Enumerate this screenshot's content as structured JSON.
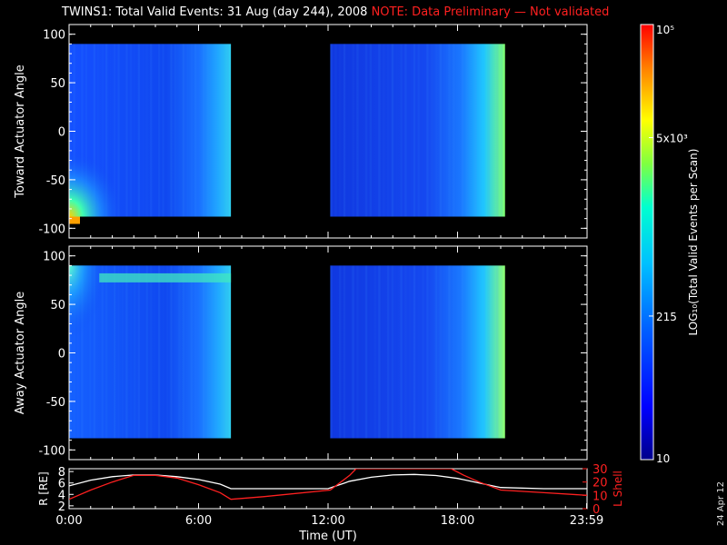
{
  "title": {
    "main": "TWINS1: Total Valid Events: 31 Aug (day 244), 2008",
    "note": "NOTE: Data Preliminary — Not validated"
  },
  "date_stamp": "24 Apr 12",
  "colors": {
    "background": "#000000",
    "note": "#ff2020",
    "r_line": "#ffffff",
    "l_shell_line": "#ff2020"
  },
  "chart_data": [
    {
      "type": "heatmap",
      "panel": "toward",
      "ylabel": "Toward Actuator Angle",
      "x_range_hours": [
        0,
        24
      ],
      "ylim": [
        -110,
        110
      ],
      "y_ticks": [
        "100",
        "50",
        "0",
        "-50",
        "-100"
      ],
      "y_tick_values": [
        100,
        50,
        0,
        -50,
        -100
      ],
      "data_windows_hours": [
        [
          0.0,
          7.5
        ],
        [
          12.1,
          20.2
        ]
      ],
      "angle_range": [
        -88,
        90
      ]
    },
    {
      "type": "heatmap",
      "panel": "away",
      "ylabel": "Away Actuator Angle",
      "x_range_hours": [
        0,
        24
      ],
      "ylim": [
        -110,
        110
      ],
      "y_ticks": [
        "100",
        "50",
        "0",
        "-50",
        "-100"
      ],
      "y_tick_values": [
        100,
        50,
        0,
        -50,
        -100
      ],
      "data_windows_hours": [
        [
          0.0,
          7.5
        ],
        [
          12.1,
          20.2
        ]
      ],
      "angle_range": [
        -88,
        90
      ]
    },
    {
      "type": "line",
      "panel": "orbit",
      "xlabel": "Time (UT)",
      "x_ticks": [
        "0:00",
        "6:00",
        "12:00",
        "18:00",
        "23:59"
      ],
      "x_tick_values": [
        0,
        6,
        12,
        18,
        23.98
      ],
      "left_axis": {
        "label": "R [RE]",
        "ticks": [
          "8",
          "6",
          "4",
          "2"
        ],
        "tick_values": [
          8,
          6,
          4,
          2
        ],
        "ylim": [
          1.5,
          8.5
        ]
      },
      "right_axis": {
        "label": "L Shell",
        "ticks": [
          "30",
          "20",
          "10",
          "0"
        ],
        "tick_values": [
          30,
          20,
          10,
          0
        ],
        "ylim": [
          0,
          30
        ]
      },
      "series": [
        {
          "name": "R",
          "axis": "left",
          "x": [
            0,
            1,
            2,
            3,
            4,
            5,
            6,
            7,
            7.5,
            9,
            12,
            13,
            14,
            15,
            16,
            17,
            18,
            19,
            20,
            22,
            24
          ],
          "y": [
            5.5,
            6.5,
            7.1,
            7.4,
            7.4,
            7.1,
            6.6,
            5.8,
            5.0,
            5.0,
            5.0,
            6.3,
            7.0,
            7.4,
            7.5,
            7.3,
            6.8,
            6.0,
            5.2,
            5.0,
            5.0
          ]
        },
        {
          "name": "L Shell",
          "axis": "right",
          "x": [
            0,
            1,
            2,
            3,
            4,
            5,
            6,
            7,
            7.5,
            9,
            12.1,
            13,
            13.3,
            17.7,
            18.3,
            19,
            20,
            22,
            24
          ],
          "y": [
            7,
            14,
            20,
            25,
            25,
            23,
            18,
            12,
            7,
            9,
            14,
            25,
            30,
            30,
            25,
            20,
            14,
            12,
            10
          ]
        }
      ]
    }
  ],
  "colorbar": {
    "label": "LOG10(Total Valid Events per Scan)",
    "ticks": [
      "10^5",
      "5x10^3",
      "215",
      "10"
    ],
    "tick_fracs": [
      1.0,
      0.74,
      0.33,
      0.0
    ],
    "stops": [
      "#00008b",
      "#0000ff",
      "#0060ff",
      "#00c0ff",
      "#00ffd0",
      "#7fff40",
      "#ffff00",
      "#ff8000",
      "#ff0000"
    ]
  }
}
